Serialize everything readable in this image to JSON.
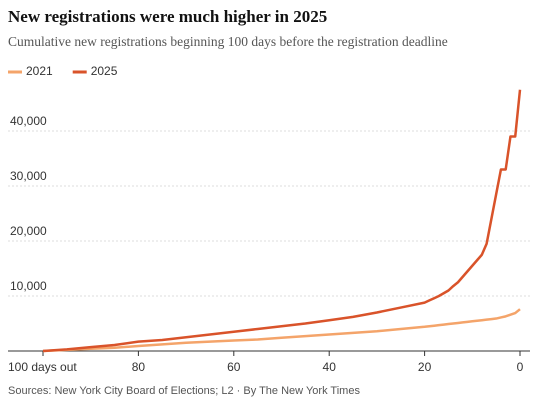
{
  "chart_data": {
    "type": "line",
    "title": "New registrations were much higher in 2025",
    "subtitle": "Cumulative new registrations beginning 100 days before the registration deadline",
    "source": "Sources: New York City Board of Elections; L2 · By The New York Times",
    "x": [
      100,
      95,
      90,
      85,
      80,
      75,
      70,
      65,
      60,
      55,
      50,
      45,
      40,
      35,
      30,
      25,
      20,
      19,
      18,
      17,
      16,
      15,
      14,
      13,
      12,
      11,
      10,
      9,
      8,
      7,
      6,
      5,
      4,
      3,
      2,
      1,
      0
    ],
    "series": [
      {
        "name": "2021",
        "color": "#f4a46a",
        "values": [
          0,
          200,
          400,
          600,
          900,
          1200,
          1500,
          1700,
          1900,
          2100,
          2400,
          2700,
          3000,
          3300,
          3600,
          4000,
          4400,
          4500,
          4600,
          4700,
          4800,
          4900,
          5000,
          5100,
          5200,
          5300,
          5400,
          5500,
          5600,
          5700,
          5800,
          5900,
          6100,
          6300,
          6600,
          6900,
          7600
        ]
      },
      {
        "name": "2025",
        "color": "#d9532a",
        "values": [
          0,
          300,
          700,
          1100,
          1700,
          2000,
          2500,
          3000,
          3500,
          4000,
          4500,
          5000,
          5600,
          6200,
          7000,
          7900,
          8800,
          9200,
          9600,
          10000,
          10500,
          11000,
          11800,
          12500,
          13500,
          14500,
          15500,
          16500,
          17500,
          19500,
          24000,
          28500,
          33000,
          33000,
          39000,
          39000,
          47500
        ]
      }
    ],
    "xlim": [
      100,
      0
    ],
    "xticks": [
      {
        "value": 100,
        "label": "100 days out"
      },
      80,
      60,
      40,
      20,
      0
    ],
    "ylim": [
      0,
      50000
    ],
    "yticks": [
      {
        "value": 10000,
        "label": "10,000"
      },
      {
        "value": 20000,
        "label": "20,000"
      },
      {
        "value": 30000,
        "label": "30,000"
      },
      {
        "value": 40000,
        "label": "40,000"
      }
    ],
    "grid": true
  }
}
